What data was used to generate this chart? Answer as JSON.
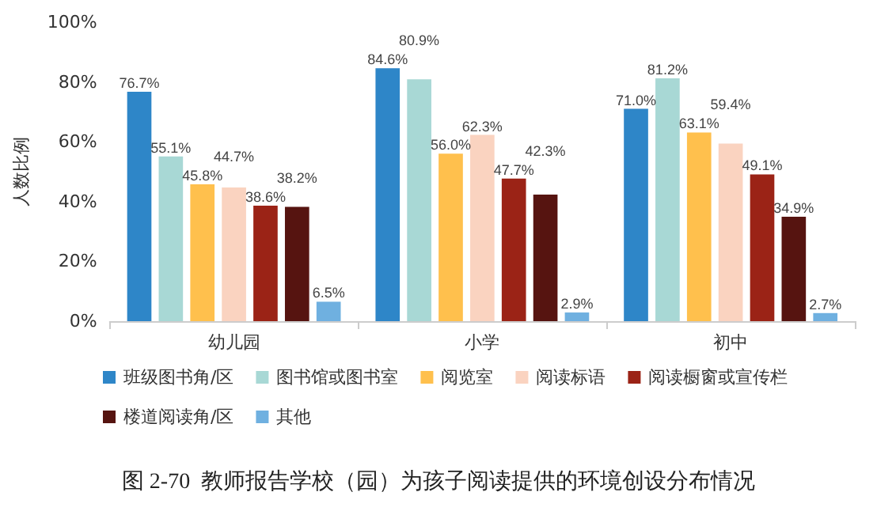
{
  "chart_data": {
    "type": "bar",
    "title": "图 2-70  教师报告学校（园）为孩子阅读提供的环境创设分布情况",
    "ylabel": "人数比例",
    "categories": [
      "幼儿园",
      "小学",
      "初中"
    ],
    "series": [
      {
        "name": "班级图书角/区",
        "color": "#2e86c8",
        "values": [
          76.7,
          84.6,
          71.0
        ],
        "value_labels": [
          "76.7%",
          "84.6%",
          "71.0%"
        ]
      },
      {
        "name": "图书馆或图书室",
        "color": "#a8d8d5",
        "values": [
          55.1,
          80.9,
          81.2
        ],
        "value_labels": [
          "55.1%",
          "80.9%",
          "81.2%"
        ]
      },
      {
        "name": "阅览室",
        "color": "#ffc04d",
        "values": [
          45.8,
          56.0,
          63.1
        ],
        "value_labels": [
          "45.8%",
          "56.0%",
          "63.1%"
        ]
      },
      {
        "name": "阅读标语",
        "color": "#fad3c0",
        "values": [
          44.7,
          62.3,
          59.4
        ],
        "value_labels": [
          "44.7%",
          "62.3%",
          "59.4%"
        ]
      },
      {
        "name": "阅读橱窗或宣传栏",
        "color": "#9b2316",
        "values": [
          38.6,
          47.7,
          49.1
        ],
        "value_labels": [
          "38.6%",
          "47.7%",
          "49.1%"
        ]
      },
      {
        "name": "楼道阅读角/区",
        "color": "#561410",
        "values": [
          38.2,
          42.3,
          34.9
        ],
        "value_labels": [
          "38.2%",
          "42.3%",
          "34.9%"
        ]
      },
      {
        "name": "其他",
        "color": "#6fb0e0",
        "values": [
          6.5,
          2.9,
          2.7
        ],
        "value_labels": [
          "6.5%",
          "2.9%",
          "2.7%"
        ]
      }
    ],
    "ylim": [
      0,
      100
    ],
    "yticks": [
      {
        "value": 0,
        "label": "0%"
      },
      {
        "value": 20,
        "label": "20%"
      },
      {
        "value": 40,
        "label": "40%"
      },
      {
        "value": 60,
        "label": "60%"
      },
      {
        "value": 80,
        "label": "80%"
      },
      {
        "value": 100,
        "label": "100%"
      }
    ],
    "grid": false,
    "legend": "bottom"
  }
}
